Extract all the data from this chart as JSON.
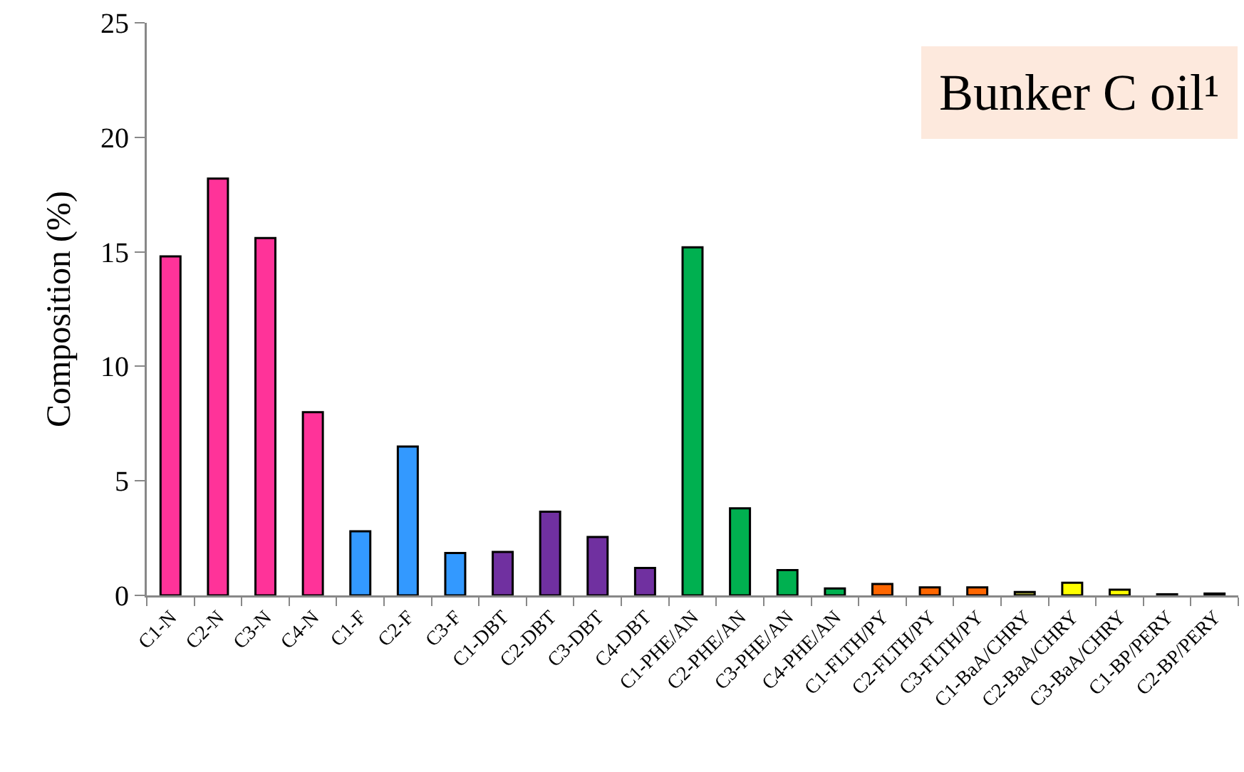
{
  "chart_data": {
    "type": "bar",
    "title": "Bunker C oil¹",
    "ylabel": "Composition (%)",
    "categories": [
      "C1-N",
      "C2-N",
      "C3-N",
      "C4-N",
      "C1-F",
      "C2-F",
      "C3-F",
      "C1-DBT",
      "C2-DBT",
      "C3-DBT",
      "C4-DBT",
      "C1-PHE/AN",
      "C2-PHE/AN",
      "C3-PHE/AN",
      "C4-PHE/AN",
      "C1-FLTH/PY",
      "C2-FLTH/PY",
      "C3-FLTH/PY",
      "C1-BaA/CHRY",
      "C2-BaA/CHRY",
      "C3-BaA/CHRY",
      "C1-BP/PERY",
      "C2-BP/PERY"
    ],
    "values": [
      14.8,
      18.2,
      15.6,
      8.0,
      2.8,
      6.5,
      1.85,
      1.9,
      3.65,
      2.55,
      1.2,
      15.2,
      3.8,
      1.1,
      0.3,
      0.5,
      0.35,
      0.35,
      0.15,
      0.55,
      0.25,
      0.05,
      0.08
    ],
    "colors": [
      "#ff3399",
      "#ff3399",
      "#ff3399",
      "#ff3399",
      "#3399ff",
      "#3399ff",
      "#3399ff",
      "#7030a0",
      "#7030a0",
      "#7030a0",
      "#7030a0",
      "#00b050",
      "#00b050",
      "#00b050",
      "#00b050",
      "#ff6600",
      "#ff6600",
      "#ff6600",
      "#999933",
      "#ffff00",
      "#ffff00",
      "#a6a6a6",
      "#808080"
    ],
    "ylim": [
      0,
      25
    ],
    "yticks": [
      0,
      5,
      10,
      15,
      20,
      25
    ],
    "grid": false
  }
}
